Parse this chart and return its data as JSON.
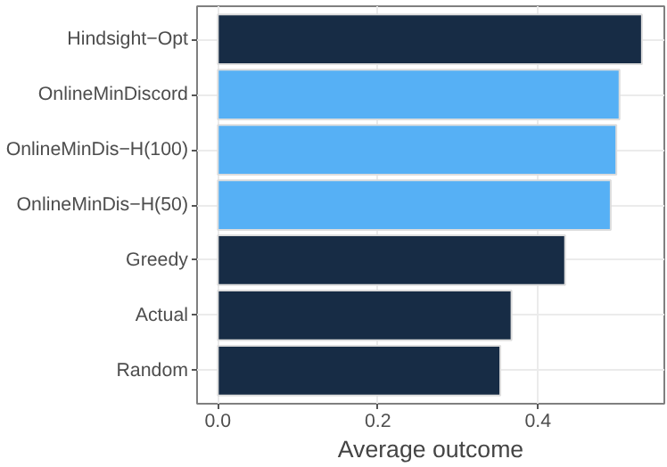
{
  "chart_data": {
    "type": "bar",
    "orientation": "horizontal",
    "xlabel": "Average outcome",
    "categories": [
      "Hindsight−Opt",
      "OnlineMinDiscord",
      "OnlineMinDis−H(100)",
      "OnlineMinDis−H(50)",
      "Greedy",
      "Actual",
      "Random"
    ],
    "values": [
      0.53,
      0.502,
      0.498,
      0.491,
      0.434,
      0.367,
      0.353
    ],
    "colors": [
      "#172c45",
      "#56b0f5",
      "#56b0f5",
      "#56b0f5",
      "#172c45",
      "#172c45",
      "#172c45"
    ],
    "xlim": [
      -0.026,
      0.558
    ],
    "xticks": [
      {
        "value": 0,
        "label": "0.0"
      },
      0.2,
      0.4
    ],
    "grid": true
  }
}
